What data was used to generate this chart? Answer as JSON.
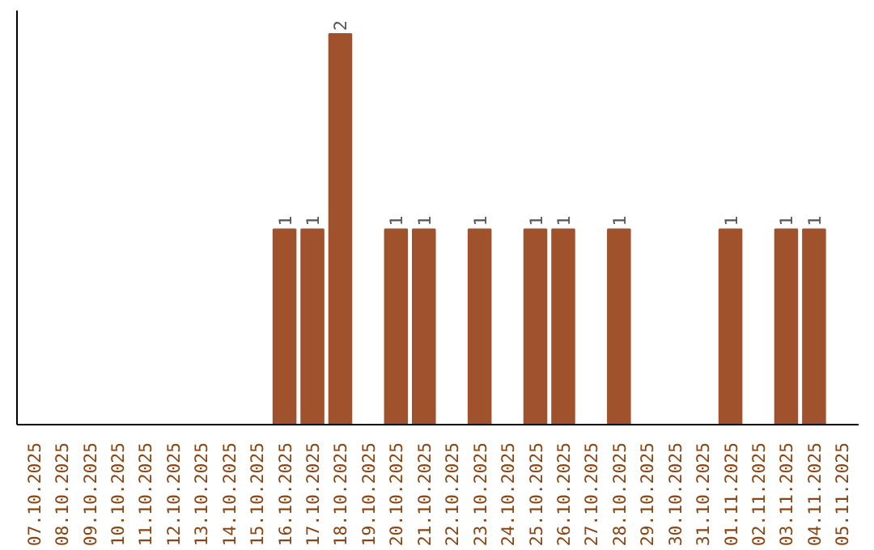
{
  "chart_data": {
    "type": "bar",
    "categories": [
      "07.10.2025",
      "08.10.2025",
      "09.10.2025",
      "10.10.2025",
      "11.10.2025",
      "12.10.2025",
      "13.10.2025",
      "14.10.2025",
      "15.10.2025",
      "16.10.2025",
      "17.10.2025",
      "18.10.2025",
      "19.10.2025",
      "20.10.2025",
      "21.10.2025",
      "22.10.2025",
      "23.10.2025",
      "24.10.2025",
      "25.10.2025",
      "26.10.2025",
      "27.10.2025",
      "28.10.2025",
      "29.10.2025",
      "30.10.2025",
      "31.10.2025",
      "01.11.2025",
      "02.11.2025",
      "03.11.2025",
      "04.11.2025",
      "05.11.2025"
    ],
    "values": [
      0,
      0,
      0,
      0,
      0,
      0,
      0,
      0,
      0,
      1,
      1,
      2,
      0,
      1,
      1,
      0,
      1,
      0,
      1,
      1,
      0,
      1,
      0,
      0,
      0,
      1,
      0,
      1,
      1,
      0
    ],
    "value_labels": [
      null,
      null,
      null,
      null,
      null,
      null,
      null,
      null,
      null,
      "1",
      "1",
      "2",
      null,
      "1",
      "1",
      null,
      "1",
      null,
      "1",
      "1",
      null,
      "1",
      null,
      null,
      null,
      "1",
      null,
      "1",
      "1",
      null
    ],
    "color": "#a0522d",
    "grid": false,
    "tick_labels": "x"
  }
}
